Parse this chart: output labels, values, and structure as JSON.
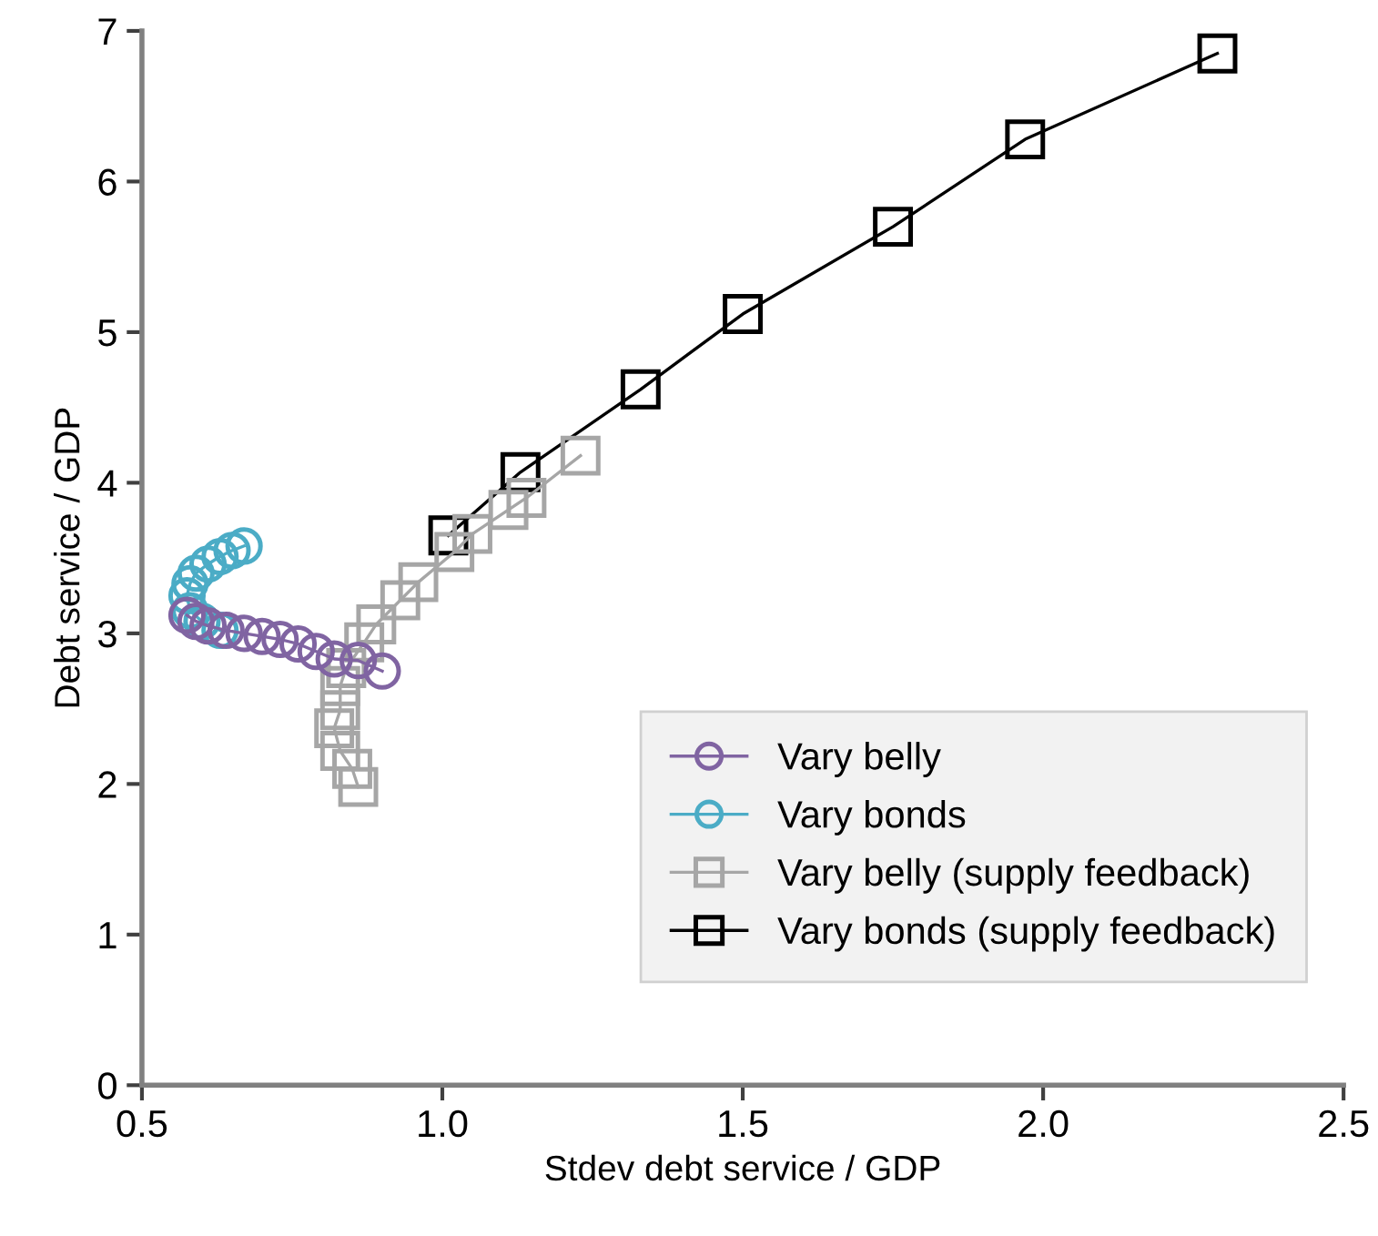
{
  "chart_data": {
    "type": "line",
    "xlabel": "Stdev debt service / GDP",
    "ylabel": "Debt service / GDP",
    "xlim": [
      0.5,
      2.5
    ],
    "ylim": [
      0,
      7
    ],
    "xticks": [
      0.5,
      {
        "value": 1,
        "label": "1.0"
      },
      1.5,
      {
        "value": 2,
        "label": "2.0"
      },
      2.5
    ],
    "yticks": [
      0,
      1,
      2,
      3,
      4,
      5,
      6,
      7
    ],
    "grid": false,
    "legend": "bottom right",
    "series": [
      {
        "name": "Vary belly",
        "color": "#8064a2",
        "marker": "circle",
        "x": [
          0.575,
          0.59,
          0.61,
          0.64,
          0.67,
          0.7,
          0.73,
          0.76,
          0.79,
          0.82,
          0.86,
          0.9
        ],
        "values": [
          3.12,
          3.08,
          3.05,
          3.02,
          3.0,
          2.98,
          2.96,
          2.93,
          2.88,
          2.83,
          2.82,
          2.75
        ]
      },
      {
        "name": "Vary bonds",
        "color": "#4bacc6",
        "marker": "circle",
        "x": [
          0.63,
          0.6,
          0.58,
          0.575,
          0.58,
          0.59,
          0.61,
          0.63,
          0.65,
          0.67
        ],
        "values": [
          3.02,
          3.08,
          3.15,
          3.25,
          3.33,
          3.4,
          3.46,
          3.51,
          3.55,
          3.58
        ]
      },
      {
        "name": "Vary belly (supply feedback)",
        "color": "#a6a6a6",
        "marker": "square",
        "x": [
          0.86,
          0.85,
          0.83,
          0.82,
          0.83,
          0.83,
          0.84,
          0.87,
          0.89,
          0.93,
          0.96,
          1.02,
          1.05,
          1.11,
          1.14,
          1.23
        ],
        "values": [
          1.98,
          2.1,
          2.22,
          2.37,
          2.49,
          2.65,
          2.77,
          2.94,
          3.06,
          3.22,
          3.34,
          3.54,
          3.66,
          3.82,
          3.9,
          4.18
        ]
      },
      {
        "name": "Vary bonds (supply feedback)",
        "color": "#000000",
        "marker": "square",
        "x": [
          1.01,
          1.13,
          1.33,
          1.5,
          1.75,
          1.97,
          2.29
        ],
        "values": [
          3.65,
          4.07,
          4.62,
          5.12,
          5.7,
          6.28,
          6.85
        ]
      }
    ]
  }
}
